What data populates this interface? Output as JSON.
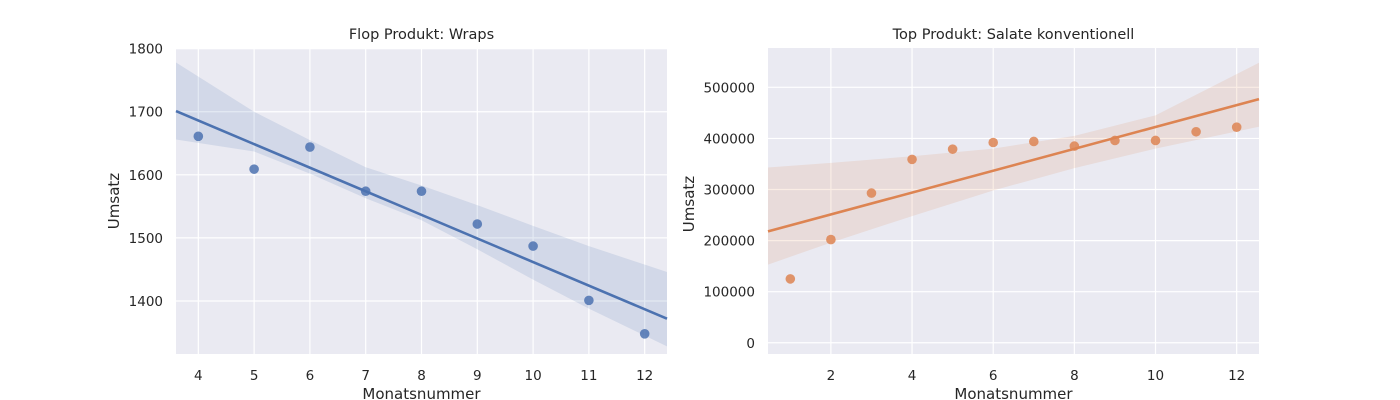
{
  "chart_data": [
    {
      "type": "scatter",
      "title": "Flop Produkt: Wraps",
      "xlabel": "Monatsnummer",
      "ylabel": "Umsatz",
      "xlim": [
        3.6,
        12.4
      ],
      "ylim": [
        1316,
        1801
      ],
      "xticks": [
        4,
        5,
        6,
        7,
        8,
        9,
        10,
        11,
        12
      ],
      "yticks": [
        1400,
        1500,
        1600,
        1700,
        1800
      ],
      "grid": true,
      "color": "#4c72b0",
      "points": [
        {
          "x": 4,
          "y": 1661
        },
        {
          "x": 5,
          "y": 1609
        },
        {
          "x": 6,
          "y": 1644
        },
        {
          "x": 7,
          "y": 1574
        },
        {
          "x": 8,
          "y": 1574
        },
        {
          "x": 9,
          "y": 1522
        },
        {
          "x": 10,
          "y": 1487
        },
        {
          "x": 11,
          "y": 1401
        },
        {
          "x": 12,
          "y": 1348
        }
      ],
      "regression": {
        "x": [
          3.6,
          12.4
        ],
        "y": [
          1701,
          1372
        ]
      },
      "confidence_band": {
        "x": [
          3.6,
          5,
          6,
          7,
          8,
          9,
          10,
          11,
          12.4
        ],
        "upper": [
          1778,
          1700,
          1655,
          1612,
          1583,
          1552,
          1519,
          1487,
          1446
        ],
        "lower": [
          1656,
          1637,
          1602,
          1563,
          1528,
          1482,
          1434,
          1388,
          1328
        ]
      }
    },
    {
      "type": "scatter",
      "title": "Top Produkt: Salate konventionell",
      "xlabel": "Monatsnummer",
      "ylabel": "Umsatz",
      "xlim": [
        0.45,
        12.55
      ],
      "ylim": [
        -22000,
        577000
      ],
      "xticks": [
        2,
        4,
        6,
        8,
        10,
        12
      ],
      "yticks": [
        0,
        100000,
        200000,
        300000,
        400000,
        500000
      ],
      "grid": true,
      "color": "#dd8452",
      "points": [
        {
          "x": 1,
          "y": 125000
        },
        {
          "x": 2,
          "y": 202000
        },
        {
          "x": 3,
          "y": 293000
        },
        {
          "x": 4,
          "y": 359000
        },
        {
          "x": 5,
          "y": 379000
        },
        {
          "x": 6,
          "y": 392000
        },
        {
          "x": 7,
          "y": 394000
        },
        {
          "x": 8,
          "y": 385000
        },
        {
          "x": 9,
          "y": 396000
        },
        {
          "x": 10,
          "y": 396000
        },
        {
          "x": 11,
          "y": 413000
        },
        {
          "x": 12,
          "y": 422000
        }
      ],
      "regression": {
        "x": [
          0.45,
          12.55
        ],
        "y": [
          218000,
          477000
        ]
      },
      "confidence_band": {
        "x": [
          0.45,
          2,
          4,
          6,
          8,
          10,
          12.55
        ],
        "upper": [
          343000,
          352000,
          365000,
          380000,
          405000,
          445000,
          548000
        ],
        "lower": [
          153000,
          196000,
          248000,
          298000,
          342000,
          380000,
          423000
        ]
      }
    }
  ]
}
